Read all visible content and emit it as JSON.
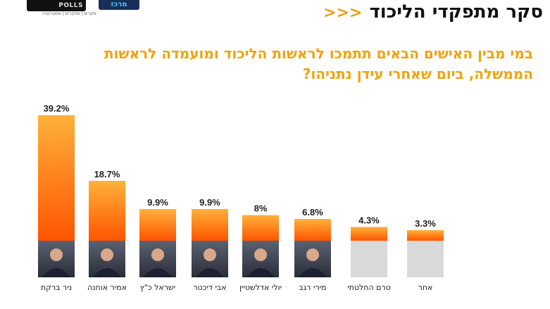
{
  "header": {
    "logo_left": "POLLS",
    "logo_left_sub": "סקרים | מחקרים | אסטרטגיה",
    "logo_right": "מרכז",
    "title": "סקר מתפקדי הליכוד",
    "arrows": "<<<"
  },
  "chart_data": {
    "type": "bar",
    "title": "במי מבין האישים הבאים תתמכו לראשות הליכוד ומועמדה לראשות הממשלה, ביום שאחרי עידן נתניהו?",
    "categories": [
      "ניר ברקת",
      "אמיר אוחנה",
      "ישראל כ\"ץ",
      "אבי דיכטר",
      "יולי אדלשטיין",
      "מירי רגב",
      "טרם החלטתי",
      "אחר"
    ],
    "values": [
      39.2,
      18.7,
      9.9,
      9.9,
      8,
      6.8,
      4.3,
      3.3
    ],
    "value_labels": [
      "39.2%",
      "18.7%",
      "9.9%",
      "9.9%",
      "8%",
      "6.8%",
      "4.3%",
      "3.3%"
    ],
    "has_photo": [
      true,
      true,
      true,
      true,
      true,
      true,
      false,
      false
    ],
    "unit": "%",
    "xlabel": "",
    "ylabel": "",
    "ylim": [
      0,
      40
    ],
    "colors": {
      "bar_top": "#ffb13a",
      "bar_bottom": "#ff5500",
      "photo_bg": "#3a3f4b",
      "placeholder": "#d9d9d9",
      "title": "#f0a30a",
      "arrows": "#f39c12"
    }
  }
}
